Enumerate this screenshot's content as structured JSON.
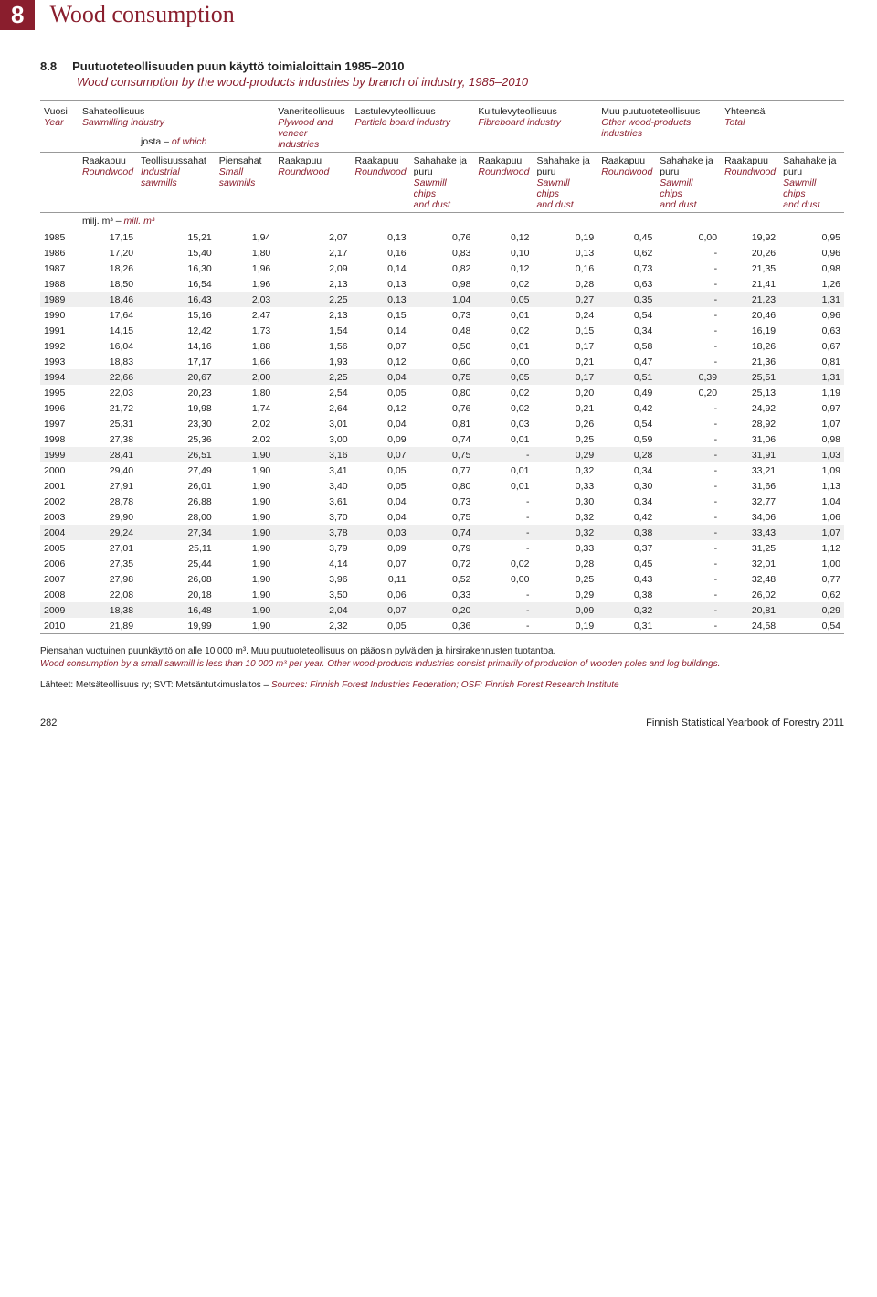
{
  "chapter": {
    "num": "8",
    "title": "Wood consumption"
  },
  "table_id": "8.8",
  "title_fi": "Puutuoteteollisuuden puun käyttö toimialoittain 1985–2010",
  "title_en": "Wood consumption by the wood-products industries by branch of industry, 1985–2010",
  "headers": {
    "year_fi": "Vuosi",
    "year_en": "Year",
    "saw_fi": "Sahateollisuus",
    "saw_en": "Sawmilling industry",
    "plyw_fi": "Vaneriteollisuus",
    "plyw_en1": "Plywood and",
    "plyw_en2": "veneer industries",
    "part_fi": "Lastulevyteollisuus",
    "part_en": "Particle board industry",
    "fibre_fi": "Kuitulevyteollisuus",
    "fibre_en": "Fibreboard industry",
    "other_fi": "Muu puutuoteteollisuus",
    "other_en": "Other wood-products industries",
    "total_fi": "Yhteensä",
    "total_en": "Total",
    "raaka_fi": "Raakapuu",
    "raaka_en": "Roundwood",
    "josta_fi": "josta – ",
    "josta_en": "of which",
    "teoll_fi": "Teollisuussahat",
    "teoll_en": "Industrial sawmills",
    "pien_fi": "Piensahat",
    "pien_en": "Small sawmills",
    "saha_fi": "Sahahake ja puru",
    "saha_en1": "Sawmill chips",
    "saha_en2": "and dust",
    "unit_fi": "milj. m³ – ",
    "unit_en": "mill. m³"
  },
  "rows": [
    [
      "1985",
      "17,15",
      "15,21",
      "1,94",
      "2,07",
      "0,13",
      "0,76",
      "0,12",
      "0,19",
      "0,45",
      "0,00",
      "19,92",
      "0,95"
    ],
    [
      "1986",
      "17,20",
      "15,40",
      "1,80",
      "2,17",
      "0,16",
      "0,83",
      "0,10",
      "0,13",
      "0,62",
      "-",
      "20,26",
      "0,96"
    ],
    [
      "1987",
      "18,26",
      "16,30",
      "1,96",
      "2,09",
      "0,14",
      "0,82",
      "0,12",
      "0,16",
      "0,73",
      "-",
      "21,35",
      "0,98"
    ],
    [
      "1988",
      "18,50",
      "16,54",
      "1,96",
      "2,13",
      "0,13",
      "0,98",
      "0,02",
      "0,28",
      "0,63",
      "-",
      "21,41",
      "1,26"
    ],
    [
      "1989",
      "18,46",
      "16,43",
      "2,03",
      "2,25",
      "0,13",
      "1,04",
      "0,05",
      "0,27",
      "0,35",
      "-",
      "21,23",
      "1,31"
    ],
    [
      "1990",
      "17,64",
      "15,16",
      "2,47",
      "2,13",
      "0,15",
      "0,73",
      "0,01",
      "0,24",
      "0,54",
      "-",
      "20,46",
      "0,96"
    ],
    [
      "1991",
      "14,15",
      "12,42",
      "1,73",
      "1,54",
      "0,14",
      "0,48",
      "0,02",
      "0,15",
      "0,34",
      "-",
      "16,19",
      "0,63"
    ],
    [
      "1992",
      "16,04",
      "14,16",
      "1,88",
      "1,56",
      "0,07",
      "0,50",
      "0,01",
      "0,17",
      "0,58",
      "-",
      "18,26",
      "0,67"
    ],
    [
      "1993",
      "18,83",
      "17,17",
      "1,66",
      "1,93",
      "0,12",
      "0,60",
      "0,00",
      "0,21",
      "0,47",
      "-",
      "21,36",
      "0,81"
    ],
    [
      "1994",
      "22,66",
      "20,67",
      "2,00",
      "2,25",
      "0,04",
      "0,75",
      "0,05",
      "0,17",
      "0,51",
      "0,39",
      "25,51",
      "1,31"
    ],
    [
      "1995",
      "22,03",
      "20,23",
      "1,80",
      "2,54",
      "0,05",
      "0,80",
      "0,02",
      "0,20",
      "0,49",
      "0,20",
      "25,13",
      "1,19"
    ],
    [
      "1996",
      "21,72",
      "19,98",
      "1,74",
      "2,64",
      "0,12",
      "0,76",
      "0,02",
      "0,21",
      "0,42",
      "-",
      "24,92",
      "0,97"
    ],
    [
      "1997",
      "25,31",
      "23,30",
      "2,02",
      "3,01",
      "0,04",
      "0,81",
      "0,03",
      "0,26",
      "0,54",
      "-",
      "28,92",
      "1,07"
    ],
    [
      "1998",
      "27,38",
      "25,36",
      "2,02",
      "3,00",
      "0,09",
      "0,74",
      "0,01",
      "0,25",
      "0,59",
      "-",
      "31,06",
      "0,98"
    ],
    [
      "1999",
      "28,41",
      "26,51",
      "1,90",
      "3,16",
      "0,07",
      "0,75",
      "-",
      "0,29",
      "0,28",
      "-",
      "31,91",
      "1,03"
    ],
    [
      "2000",
      "29,40",
      "27,49",
      "1,90",
      "3,41",
      "0,05",
      "0,77",
      "0,01",
      "0,32",
      "0,34",
      "-",
      "33,21",
      "1,09"
    ],
    [
      "2001",
      "27,91",
      "26,01",
      "1,90",
      "3,40",
      "0,05",
      "0,80",
      "0,01",
      "0,33",
      "0,30",
      "-",
      "31,66",
      "1,13"
    ],
    [
      "2002",
      "28,78",
      "26,88",
      "1,90",
      "3,61",
      "0,04",
      "0,73",
      "-",
      "0,30",
      "0,34",
      "-",
      "32,77",
      "1,04"
    ],
    [
      "2003",
      "29,90",
      "28,00",
      "1,90",
      "3,70",
      "0,04",
      "0,75",
      "-",
      "0,32",
      "0,42",
      "-",
      "34,06",
      "1,06"
    ],
    [
      "2004",
      "29,24",
      "27,34",
      "1,90",
      "3,78",
      "0,03",
      "0,74",
      "-",
      "0,32",
      "0,38",
      "-",
      "33,43",
      "1,07"
    ],
    [
      "2005",
      "27,01",
      "25,11",
      "1,90",
      "3,79",
      "0,09",
      "0,79",
      "-",
      "0,33",
      "0,37",
      "-",
      "31,25",
      "1,12"
    ],
    [
      "2006",
      "27,35",
      "25,44",
      "1,90",
      "4,14",
      "0,07",
      "0,72",
      "0,02",
      "0,28",
      "0,45",
      "-",
      "32,01",
      "1,00"
    ],
    [
      "2007",
      "27,98",
      "26,08",
      "1,90",
      "3,96",
      "0,11",
      "0,52",
      "0,00",
      "0,25",
      "0,43",
      "-",
      "32,48",
      "0,77"
    ],
    [
      "2008",
      "22,08",
      "20,18",
      "1,90",
      "3,50",
      "0,06",
      "0,33",
      "-",
      "0,29",
      "0,38",
      "-",
      "26,02",
      "0,62"
    ],
    [
      "2009",
      "18,38",
      "16,48",
      "1,90",
      "2,04",
      "0,07",
      "0,20",
      "-",
      "0,09",
      "0,32",
      "-",
      "20,81",
      "0,29"
    ],
    [
      "2010",
      "21,89",
      "19,99",
      "1,90",
      "2,32",
      "0,05",
      "0,36",
      "-",
      "0,19",
      "0,31",
      "-",
      "24,58",
      "0,54"
    ]
  ],
  "foot_fi": "Piensahan vuotuinen puunkäyttö on alle 10 000 m³. Muu puutuoteteollisuus on pääosin pylväiden ja hirsirakennusten tuotantoa.",
  "foot_en": "Wood consumption by a small sawmill is less than 10 000 m³ per year. Other wood-products industries consist primarily of production of wooden poles and log buildings.",
  "sources_fi": "Lähteet: Metsäteollisuus ry; SVT: Metsäntutkimuslaitos – ",
  "sources_en": "Sources: Finnish Forest Industries Federation; OSF: Finnish Forest Research Institute",
  "page_num": "282",
  "pub": "Finnish Statistical Yearbook of Forestry 2011"
}
